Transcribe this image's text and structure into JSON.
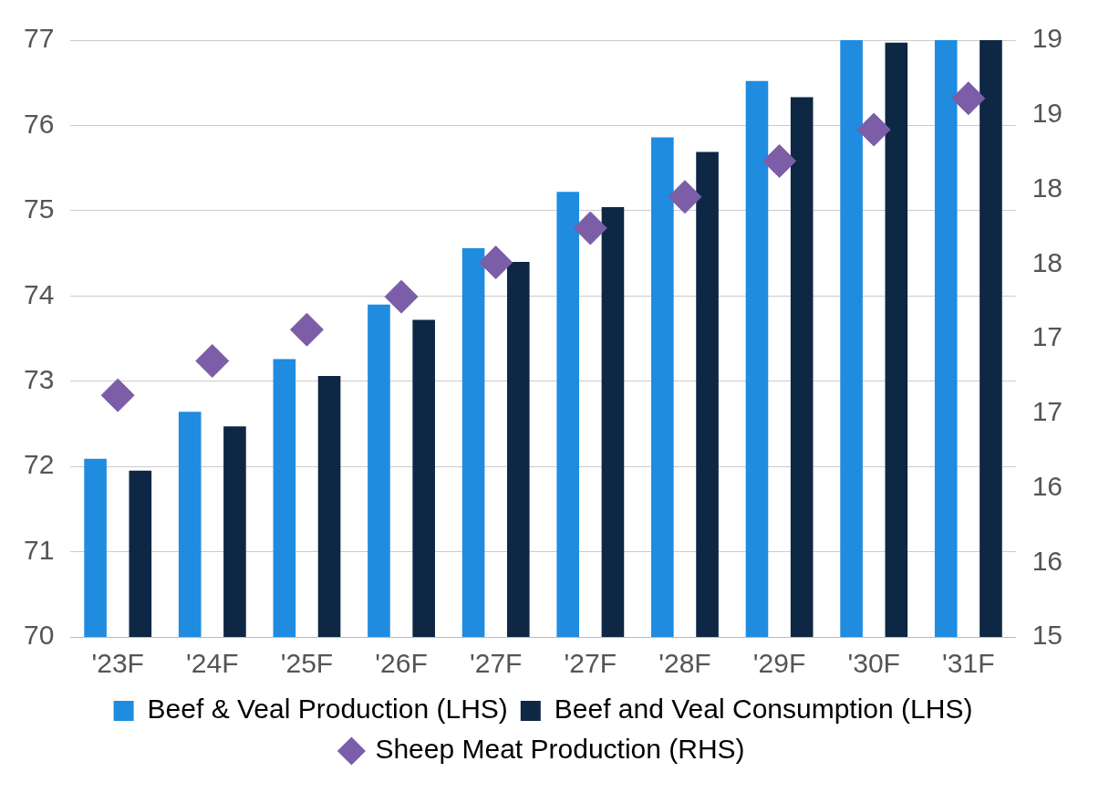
{
  "chart_data": {
    "type": "bar",
    "categories": [
      "'23F",
      "'24F",
      "'25F",
      "'26F",
      "'27F",
      "'27F",
      "'28F",
      "'29F",
      "'30F",
      "'31F"
    ],
    "series": [
      {
        "name": "Beef & Veal Production (LHS)",
        "color": "#1f8ce0",
        "values": [
          72.09,
          72.64,
          73.26,
          73.9,
          74.56,
          75.22,
          75.86,
          76.52,
          77,
          77
        ]
      },
      {
        "name": "Beef and Veal Consumption (LHS)",
        "color": "#0d2744",
        "values": [
          71.95,
          72.47,
          73.06,
          73.72,
          74.4,
          75.04,
          75.69,
          76.33,
          76.97,
          77
        ]
      },
      {
        "name": "Sheep Meat Production (RHS)",
        "color": "#7b5ea7",
        "type": "scatter",
        "axis": "y2",
        "marker": "diamond",
        "values": [
          16.62,
          16.85,
          17.06,
          17.28,
          17.51,
          17.74,
          17.95,
          18.19,
          18.4,
          18.61
        ]
      }
    ],
    "ylim": [
      70,
      77
    ],
    "yticks": [
      70,
      71,
      72,
      73,
      74,
      75,
      76,
      77
    ],
    "y2lim": [
      15,
      19
    ],
    "y2ticks": [
      15,
      {
        "value": 15.5,
        "label": "16"
      },
      16,
      {
        "value": 16.5,
        "label": "17"
      },
      17,
      {
        "value": 17.5,
        "label": "18"
      },
      18,
      {
        "value": 18.5,
        "label": "19"
      },
      19
    ],
    "grid": "y",
    "legend": "bottom"
  }
}
